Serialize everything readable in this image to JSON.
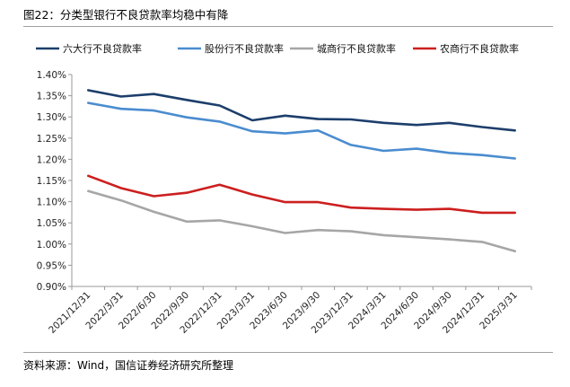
{
  "header": {
    "title": "图22：分类型银行不良贷款率均稳中有降"
  },
  "footer": {
    "source": "资料来源：Wind，国信证券经济研究所整理"
  },
  "chart_data": {
    "type": "line",
    "title": "图22：分类型银行不良贷款率均稳中有降",
    "xlabel": "",
    "ylabel": "",
    "ylim": [
      0.9,
      1.4
    ],
    "yticks": [
      "0.90%",
      "0.95%",
      "1.00%",
      "1.05%",
      "1.10%",
      "1.15%",
      "1.20%",
      "1.25%",
      "1.30%",
      "1.35%",
      "1.40%"
    ],
    "grid": false,
    "legend_position": "top",
    "categories": [
      "2021/12/31",
      "2022/3/31",
      "2022/6/30",
      "2022/9/30",
      "2022/12/31",
      "2023/3/31",
      "2023/6/30",
      "2023/9/30",
      "2023/12/31",
      "2024/3/31",
      "2024/6/30",
      "2024/9/30",
      "2024/12/31",
      "2025/3/31"
    ],
    "series": [
      {
        "name": "六大行不良贷款率",
        "color": "#1c3e6b",
        "values": [
          1.363,
          1.348,
          1.354,
          1.34,
          1.327,
          1.292,
          1.303,
          1.295,
          1.294,
          1.286,
          1.281,
          1.286,
          1.276,
          1.268
        ]
      },
      {
        "name": "股份行不良贷款率",
        "color": "#4a8ccf",
        "values": [
          1.333,
          1.319,
          1.315,
          1.299,
          1.289,
          1.266,
          1.261,
          1.268,
          1.234,
          1.22,
          1.225,
          1.215,
          1.21,
          1.202
        ]
      },
      {
        "name": "城商行不良贷款率",
        "color": "#a6a6a6",
        "values": [
          1.125,
          1.103,
          1.076,
          1.053,
          1.056,
          1.042,
          1.026,
          1.033,
          1.03,
          1.021,
          1.016,
          1.011,
          1.005,
          0.983
        ]
      },
      {
        "name": "农商行不良贷款率",
        "color": "#cc1f1f",
        "values": [
          1.161,
          1.132,
          1.113,
          1.121,
          1.14,
          1.117,
          1.099,
          1.099,
          1.086,
          1.083,
          1.081,
          1.083,
          1.074,
          1.074
        ]
      }
    ]
  }
}
